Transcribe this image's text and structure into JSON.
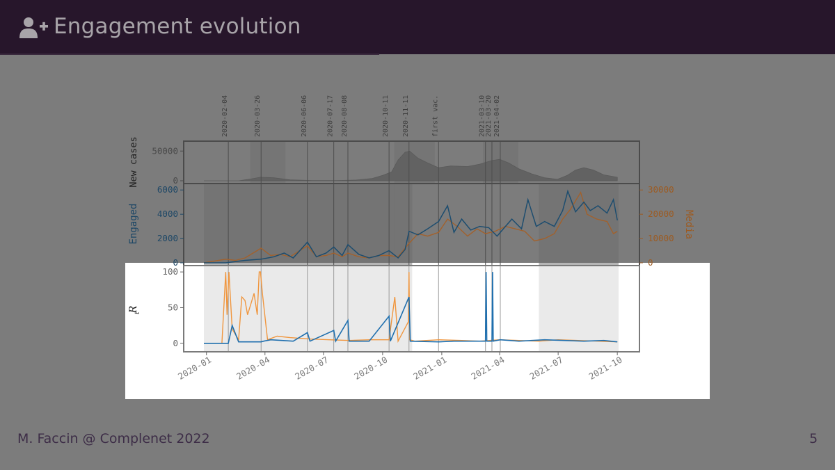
{
  "slide": {
    "title": "Engagement evolution",
    "icon": "user-plus-icon",
    "footer": "M. Faccin @ Complenet 2022",
    "page_number": "5"
  },
  "colors": {
    "header_bg": "#27162b",
    "engaged": "#1f77b4",
    "media": "#ff7f0e",
    "overlay": "#7c7c7c"
  },
  "chart_data": {
    "type": "line",
    "x_range": [
      "2019-12-28",
      "2021-10-03"
    ],
    "x_ticks": [
      "2020-01",
      "2020-04",
      "2020-07",
      "2020-10",
      "2021-01",
      "2021-04",
      "2021-07",
      "2021-10"
    ],
    "events": [
      {
        "date": "2020-02-04",
        "label": "2020-02-04"
      },
      {
        "date": "2020-03-26",
        "label": "2020-03-26"
      },
      {
        "date": "2020-06-06",
        "label": "2020-06-06"
      },
      {
        "date": "2020-07-17",
        "label": "2020-07-17"
      },
      {
        "date": "2020-08-08",
        "label": "2020-08-08"
      },
      {
        "date": "2020-10-11",
        "label": "2020-10-11"
      },
      {
        "date": "2020-11-11",
        "label": "2020-11-11"
      },
      {
        "date": "2020-12-27",
        "label": "first vac."
      },
      {
        "date": "2021-03-10",
        "label": "2021-03-10"
      },
      {
        "date": "2021-03-20",
        "label": "2021-03-20"
      },
      {
        "date": "2021-04-02",
        "label": "2021-04-02"
      }
    ],
    "shaded_periods_top": [
      [
        "2020-03-09",
        "2020-05-03"
      ],
      [
        "2020-10-19",
        "2020-12-21"
      ],
      [
        "2021-03-06",
        "2021-04-30"
      ]
    ],
    "shaded_periods_lower": [
      [
        "2019-12-28",
        "2020-10-19"
      ],
      [
        "2020-10-19",
        "2020-11-16"
      ],
      [
        "2021-06-01",
        "2021-10-03"
      ]
    ],
    "panels": [
      {
        "name": "cases",
        "ylabel": "New cases",
        "yticks": [
          0,
          50000
        ],
        "ylim": [
          0,
          62000
        ],
        "series": [
          {
            "type": "area",
            "x": [
              "2019-12-28",
              "2020-02-20",
              "2020-03-10",
              "2020-03-25",
              "2020-04-15",
              "2020-05-10",
              "2020-06-15",
              "2020-07-20",
              "2020-08-20",
              "2020-09-15",
              "2020-10-01",
              "2020-10-15",
              "2020-10-25",
              "2020-11-05",
              "2020-11-12",
              "2020-11-25",
              "2020-12-10",
              "2020-12-27",
              "2021-01-15",
              "2021-02-10",
              "2021-03-01",
              "2021-03-20",
              "2021-04-01",
              "2021-04-15",
              "2021-05-01",
              "2021-05-20",
              "2021-06-10",
              "2021-06-30",
              "2021-07-15",
              "2021-07-28",
              "2021-08-10",
              "2021-08-25",
              "2021-09-10",
              "2021-10-01"
            ],
            "y": [
              0,
              0,
              3000,
              6000,
              5000,
              1500,
              300,
              400,
              1200,
              4000,
              9000,
              15000,
              35000,
              48000,
              50000,
              38000,
              30000,
              22000,
              25000,
              24000,
              28000,
              34000,
              36000,
              30000,
              20000,
              12000,
              5000,
              2500,
              9000,
              18000,
              22000,
              18000,
              10000,
              6000
            ]
          }
        ]
      },
      {
        "name": "engagement",
        "ylabel": "Engaged",
        "ylabel_right": "Media",
        "yticks": [
          0,
          2000,
          4000,
          6000
        ],
        "yticks_right": [
          0,
          10000,
          20000,
          30000
        ],
        "ylim": [
          0,
          6300
        ],
        "ylim_right": [
          0,
          31500
        ],
        "series": [
          {
            "name": "Engaged",
            "axis": "left",
            "x": [
              "2019-12-28",
              "2020-01-31",
              "2020-02-15",
              "2020-03-01",
              "2020-03-26",
              "2020-04-15",
              "2020-05-01",
              "2020-05-15",
              "2020-06-06",
              "2020-06-20",
              "2020-07-05",
              "2020-07-17",
              "2020-07-30",
              "2020-08-08",
              "2020-08-25",
              "2020-09-10",
              "2020-09-25",
              "2020-10-11",
              "2020-10-25",
              "2020-11-05",
              "2020-11-11",
              "2020-11-25",
              "2020-12-10",
              "2020-12-27",
              "2021-01-10",
              "2021-01-20",
              "2021-02-01",
              "2021-02-15",
              "2021-03-01",
              "2021-03-15",
              "2021-03-28",
              "2021-04-10",
              "2021-04-20",
              "2021-05-05",
              "2021-05-15",
              "2021-05-28",
              "2021-06-10",
              "2021-06-25",
              "2021-07-08",
              "2021-07-16",
              "2021-07-28",
              "2021-08-10",
              "2021-08-20",
              "2021-09-01",
              "2021-09-15",
              "2021-09-25",
              "2021-10-01"
            ],
            "y": [
              0,
              0,
              100,
              200,
              300,
              500,
              800,
              400,
              1700,
              500,
              800,
              1300,
              600,
              1500,
              700,
              400,
              600,
              1000,
              400,
              1100,
              2600,
              2300,
              2800,
              3400,
              4700,
              2500,
              3600,
              2700,
              3000,
              2900,
              2200,
              3000,
              3600,
              2800,
              5200,
              3000,
              3400,
              3000,
              4300,
              5900,
              4200,
              5000,
              4300,
              4700,
              4100,
              5200,
              3500
            ]
          },
          {
            "name": "Media",
            "axis": "right",
            "x": [
              "2019-12-28",
              "2020-01-31",
              "2020-02-15",
              "2020-03-01",
              "2020-03-26",
              "2020-04-10",
              "2020-04-25",
              "2020-05-10",
              "2020-05-25",
              "2020-06-06",
              "2020-06-20",
              "2020-07-05",
              "2020-07-17",
              "2020-07-30",
              "2020-08-08",
              "2020-08-25",
              "2020-09-10",
              "2020-09-25",
              "2020-10-11",
              "2020-10-25",
              "2020-11-11",
              "2020-11-25",
              "2020-12-10",
              "2020-12-27",
              "2021-01-10",
              "2021-01-25",
              "2021-02-10",
              "2021-02-25",
              "2021-03-10",
              "2021-03-25",
              "2021-04-10",
              "2021-04-25",
              "2021-05-10",
              "2021-05-25",
              "2021-06-10",
              "2021-06-25",
              "2021-07-08",
              "2021-07-20",
              "2021-08-05",
              "2021-08-15",
              "2021-08-30",
              "2021-09-15",
              "2021-09-25",
              "2021-10-01"
            ],
            "y": [
              0,
              1500,
              1000,
              2000,
              6000,
              3000,
              3500,
              2500,
              5000,
              7000,
              2500,
              3000,
              4000,
              2500,
              4000,
              2500,
              2000,
              3000,
              3000,
              2500,
              8000,
              12000,
              11000,
              12500,
              18000,
              15000,
              11000,
              14000,
              12000,
              13000,
              15000,
              14000,
              13000,
              9000,
              10000,
              12000,
              18000,
              22000,
              29000,
              20000,
              18000,
              17000,
              12000,
              13000
            ]
          }
        ]
      },
      {
        "name": "rt",
        "ylabel": "R_t",
        "yticks": [
          0,
          50,
          100
        ],
        "ylim": [
          -8,
          105
        ],
        "series": [
          {
            "name": "Engaged",
            "x": [
              "2019-12-28",
              "2020-02-04",
              "2020-02-10",
              "2020-02-20",
              "2020-03-26",
              "2020-03-30",
              "2020-04-10",
              "2020-05-15",
              "2020-06-06",
              "2020-06-10",
              "2020-07-17",
              "2020-07-20",
              "2020-08-08",
              "2020-08-10",
              "2020-09-10",
              "2020-10-11",
              "2020-10-13",
              "2020-11-11",
              "2020-11-13",
              "2020-12-27",
              "2021-01-20",
              "2021-03-10",
              "2021-03-11",
              "2021-03-12",
              "2021-03-20",
              "2021-03-21",
              "2021-03-22",
              "2021-04-02",
              "2021-05-01",
              "2021-06-10",
              "2021-07-10",
              "2021-08-10",
              "2021-09-10",
              "2021-10-01"
            ],
            "y": [
              0,
              0,
              25,
              2,
              2,
              3,
              5,
              3,
              15,
              3,
              18,
              3,
              32,
              3,
              3,
              38,
              3,
              65,
              3,
              2,
              3,
              3,
              100,
              3,
              3,
              100,
              3,
              5,
              3,
              5,
              4,
              3,
              4,
              2
            ]
          },
          {
            "name": "Media",
            "x": [
              "2019-12-28",
              "2020-01-25",
              "2020-01-31",
              "2020-02-02",
              "2020-02-05",
              "2020-02-10",
              "2020-02-20",
              "2020-02-25",
              "2020-03-01",
              "2020-03-05",
              "2020-03-10",
              "2020-03-15",
              "2020-03-20",
              "2020-03-23",
              "2020-03-25",
              "2020-03-28",
              "2020-04-05",
              "2020-04-20",
              "2020-05-10",
              "2020-06-10",
              "2020-07-10",
              "2020-08-10",
              "2020-09-10",
              "2020-10-11",
              "2020-10-20",
              "2020-10-25",
              "2020-11-10",
              "2020-11-11",
              "2020-11-12",
              "2020-11-20",
              "2020-12-27",
              "2021-02-01",
              "2021-03-01",
              "2021-04-01",
              "2021-05-01",
              "2021-06-01",
              "2021-07-01",
              "2021-08-01",
              "2021-09-01",
              "2021-10-01"
            ],
            "y": [
              0,
              0,
              100,
              40,
              100,
              20,
              5,
              65,
              60,
              40,
              55,
              70,
              40,
              100,
              100,
              70,
              5,
              10,
              8,
              6,
              5,
              4,
              5,
              5,
              65,
              3,
              30,
              100,
              5,
              3,
              5,
              4,
              3,
              5,
              4,
              3,
              5,
              4,
              3,
              2
            ]
          }
        ]
      }
    ]
  }
}
